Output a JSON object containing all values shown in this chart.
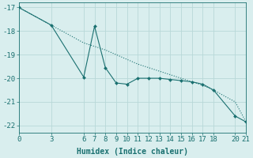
{
  "xlabel": "Humidex (Indice chaleur)",
  "bg_color": "#d9eeee",
  "grid_color": "#b8d8d8",
  "line_color": "#1a7070",
  "x_data": [
    0,
    3,
    6,
    7,
    8,
    9,
    10,
    11,
    12,
    13,
    14,
    15,
    16,
    17,
    18,
    20,
    21
  ],
  "y_data": [
    -17.0,
    -17.75,
    -19.95,
    -17.8,
    -19.55,
    -20.2,
    -20.25,
    -20.0,
    -20.0,
    -20.0,
    -20.05,
    -20.1,
    -20.15,
    -20.25,
    -20.5,
    -21.6,
    -21.85
  ],
  "x_line2": [
    0,
    3,
    6,
    7,
    8,
    9,
    10,
    11,
    12,
    13,
    14,
    15,
    16,
    17,
    18,
    20,
    21
  ],
  "y_line2": [
    -17.0,
    -17.75,
    -18.5,
    -18.65,
    -18.8,
    -19.0,
    -19.2,
    -19.4,
    -19.55,
    -19.7,
    -19.85,
    -20.0,
    -20.15,
    -20.3,
    -20.5,
    -21.0,
    -21.85
  ],
  "xlim": [
    0,
    21
  ],
  "ylim": [
    -22.3,
    -16.8
  ],
  "xticks": [
    0,
    3,
    6,
    7,
    8,
    9,
    10,
    11,
    12,
    13,
    14,
    15,
    16,
    17,
    18,
    20,
    21
  ],
  "yticks": [
    -17,
    -18,
    -19,
    -20,
    -21,
    -22
  ],
  "label_fontsize": 7,
  "tick_fontsize": 6.5
}
